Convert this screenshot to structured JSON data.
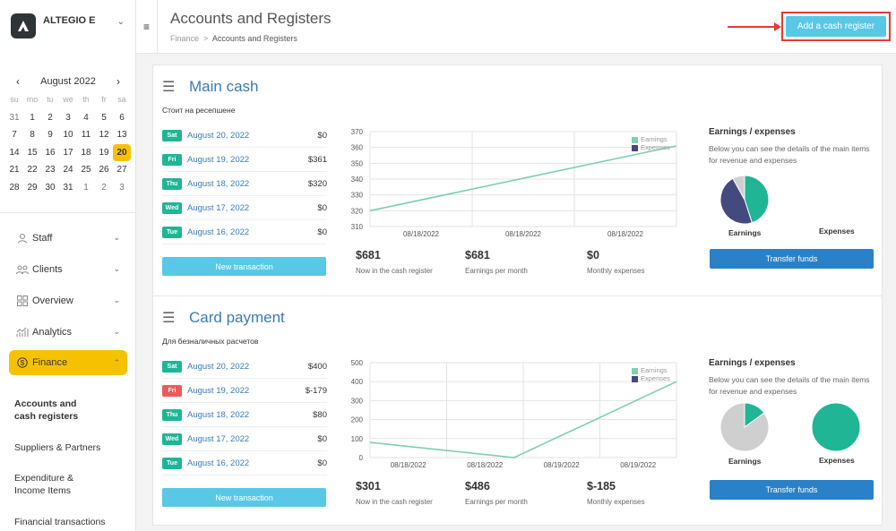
{
  "brand": {
    "name": "ALTEGIO E"
  },
  "calendar": {
    "month_label": "August 2022",
    "weekdays": [
      "su",
      "mo",
      "tu",
      "we",
      "th",
      "fr",
      "sa"
    ],
    "days": [
      "31",
      "1",
      "2",
      "3",
      "4",
      "5",
      "6",
      "7",
      "8",
      "9",
      "10",
      "11",
      "12",
      "13",
      "14",
      "15",
      "16",
      "17",
      "18",
      "19",
      "20",
      "21",
      "22",
      "23",
      "24",
      "25",
      "26",
      "27",
      "28",
      "29",
      "30",
      "31",
      "1",
      "2",
      "3"
    ],
    "muted_leading": 1,
    "muted_trailing": 3,
    "selected": "20"
  },
  "nav": {
    "items": [
      {
        "label": "Staff",
        "icon": "person-icon"
      },
      {
        "label": "Clients",
        "icon": "users-icon"
      },
      {
        "label": "Overview",
        "icon": "grid-icon"
      },
      {
        "label": "Analytics",
        "icon": "chart-icon"
      },
      {
        "label": "Finance",
        "icon": "dollar-icon"
      }
    ],
    "sub": [
      "Accounts and cash registers",
      "Suppliers & Partners",
      "Expenditure & Income Items",
      "Financial transactions"
    ]
  },
  "header": {
    "title": "Accounts and Registers",
    "breadcrumb": [
      "Finance",
      ">",
      "Accounts and Registers"
    ],
    "add_button": "Add a cash register"
  },
  "colors": {
    "accent": "#f6c200",
    "teal": "#1fb595",
    "blue": "#3b7bb5",
    "button": "#58c8e6",
    "transfer": "#2b81c7",
    "expenses": "#454a7e",
    "earnings_gray": "#cfcfcf"
  },
  "registers": [
    {
      "title": "Main cash",
      "subtitle": "Стоит на ресепшене",
      "transactions": [
        {
          "day": "Sat",
          "date": "August 20, 2022",
          "amount": "$0",
          "negative": false
        },
        {
          "day": "Fri",
          "date": "August 19, 2022",
          "amount": "$361",
          "negative": false
        },
        {
          "day": "Thu",
          "date": "August 18, 2022",
          "amount": "$320",
          "negative": false
        },
        {
          "day": "Wed",
          "date": "August 17, 2022",
          "amount": "$0",
          "negative": false
        },
        {
          "day": "Tue",
          "date": "August 16, 2022",
          "amount": "$0",
          "negative": false
        }
      ],
      "new_tx_label": "New transaction",
      "stats": [
        {
          "value": "$681",
          "label": "Now in the cash register"
        },
        {
          "value": "$681",
          "label": "Earnings per month"
        },
        {
          "value": "$0",
          "label": "Monthly expenses"
        }
      ],
      "ee_title": "Earnings / expenses",
      "ee_desc": "Below you can see the details of the main items for revenue and expenses",
      "earnings_label": "Earnings",
      "expenses_label": "Expenses",
      "transfer_label": "Transfer funds"
    },
    {
      "title": "Card payment",
      "subtitle": "Для безналичных расчетов",
      "transactions": [
        {
          "day": "Sat",
          "date": "August 20, 2022",
          "amount": "$400",
          "negative": false
        },
        {
          "day": "Fri",
          "date": "August 19, 2022",
          "amount": "$-179",
          "negative": true
        },
        {
          "day": "Thu",
          "date": "August 18, 2022",
          "amount": "$80",
          "negative": false
        },
        {
          "day": "Wed",
          "date": "August 17, 2022",
          "amount": "$0",
          "negative": false
        },
        {
          "day": "Tue",
          "date": "August 16, 2022",
          "amount": "$0",
          "negative": false
        }
      ],
      "new_tx_label": "New transaction",
      "stats": [
        {
          "value": "$301",
          "label": "Now in the cash register"
        },
        {
          "value": "$486",
          "label": "Earnings per month"
        },
        {
          "value": "$-185",
          "label": "Monthly expenses"
        }
      ],
      "ee_title": "Earnings / expenses",
      "ee_desc": "Below you can see the details of the main items for revenue and expenses",
      "earnings_label": "Earnings",
      "expenses_label": "Expenses",
      "transfer_label": "Transfer funds"
    }
  ],
  "chart_data": [
    {
      "type": "line",
      "x": [
        "08/18/2022",
        "08/18/2022",
        "08/18/2022"
      ],
      "ylim": [
        310,
        370
      ],
      "yticks": [
        310,
        320,
        330,
        340,
        350,
        360,
        370
      ],
      "series": [
        {
          "name": "Earnings",
          "color": "#7ecdb5",
          "points": [
            [
              0,
              320
            ],
            [
              1,
              361
            ]
          ]
        },
        {
          "name": "Expenses",
          "color": "#454a7e",
          "points": []
        }
      ]
    },
    {
      "type": "line",
      "x": [
        "08/18/2022",
        "08/18/2022",
        "08/19/2022",
        "08/19/2022"
      ],
      "ylim": [
        0,
        500
      ],
      "yticks": [
        0,
        100,
        200,
        300,
        400,
        500
      ],
      "series": [
        {
          "name": "Earnings",
          "color": "#7ecdb5",
          "points": [
            [
              0,
              80
            ],
            [
              0.47,
              0
            ],
            [
              1,
              400
            ]
          ]
        },
        {
          "name": "Expenses",
          "color": "#454a7e",
          "points": []
        }
      ]
    },
    {
      "type": "pie",
      "title": "Earnings",
      "slices": [
        {
          "label": "teal",
          "value": 45,
          "color": "#1fb595"
        },
        {
          "label": "navy",
          "value": 47,
          "color": "#454a7e"
        },
        {
          "label": "gray",
          "value": 8,
          "color": "#cfcfcf"
        }
      ]
    },
    {
      "type": "pie",
      "title": "Earnings",
      "slices": [
        {
          "label": "teal",
          "value": 15,
          "color": "#1fb595"
        },
        {
          "label": "gray",
          "value": 85,
          "color": "#cfcfcf"
        }
      ]
    },
    {
      "type": "pie",
      "title": "Expenses",
      "slices": [
        {
          "label": "teal",
          "value": 100,
          "color": "#1fb595"
        }
      ]
    }
  ]
}
